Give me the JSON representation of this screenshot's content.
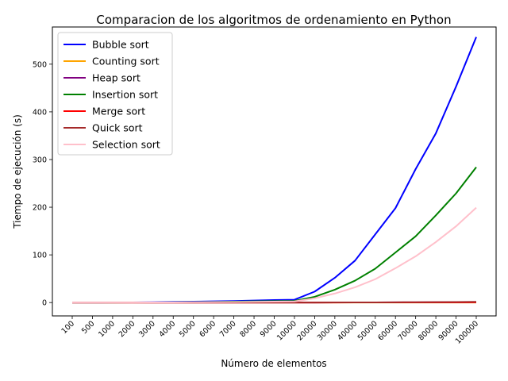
{
  "chart_data": {
    "type": "line",
    "title": "Comparacion de los algoritmos de ordenamiento en Python",
    "xlabel": "Número de elementos",
    "ylabel": "Tiempo de ejecución (s)",
    "categories": [
      "100",
      "500",
      "1000",
      "2000",
      "3000",
      "4000",
      "5000",
      "6000",
      "7000",
      "8000",
      "9000",
      "10000",
      "20000",
      "30000",
      "40000",
      "50000",
      "60000",
      "70000",
      "80000",
      "90000",
      "100000"
    ],
    "ylim": [
      -28,
      578
    ],
    "yticks": [
      0,
      100,
      200,
      300,
      400,
      500
    ],
    "legend_position": "top-left",
    "grid": false,
    "series": [
      {
        "name": "Bubble sort",
        "color": "#0000ff",
        "values": [
          0,
          0.1,
          0.2,
          0.3,
          0.7,
          1.3,
          2.0,
          2.6,
          3.3,
          4.3,
          5.3,
          6.0,
          23,
          52,
          88,
          143,
          198,
          280,
          355,
          453,
          557
        ]
      },
      {
        "name": "Counting sort",
        "color": "#ffa500",
        "values": [
          0,
          0,
          0,
          0,
          0,
          0,
          0,
          0,
          0,
          0,
          0,
          0,
          0,
          0,
          0,
          0,
          0,
          0,
          0,
          0,
          0
        ]
      },
      {
        "name": "Heap sort",
        "color": "#800080",
        "values": [
          0,
          0,
          0,
          0,
          0,
          0,
          0,
          0,
          0,
          0,
          0,
          0,
          0.1,
          0.2,
          0.3,
          0.4,
          0.5,
          0.6,
          0.7,
          0.8,
          0.9
        ]
      },
      {
        "name": "Insertion sort",
        "color": "#008000",
        "values": [
          0,
          0,
          0.1,
          0.2,
          0.4,
          0.6,
          1.0,
          1.4,
          1.9,
          2.5,
          3.0,
          3.5,
          12,
          27,
          46,
          71,
          105,
          139,
          183,
          229,
          284
        ]
      },
      {
        "name": "Merge sort",
        "color": "#ff0000",
        "values": [
          0,
          0,
          0,
          0,
          0,
          0,
          0,
          0,
          0,
          0,
          0,
          0,
          0.1,
          0.1,
          0.2,
          0.2,
          0.3,
          0.3,
          0.4,
          0.4,
          0.5
        ]
      },
      {
        "name": "Quick sort",
        "color": "#a52a2a",
        "values": [
          0,
          0,
          0,
          0,
          0,
          0,
          0,
          0,
          0,
          0,
          0,
          0,
          0.1,
          0.2,
          0.3,
          0.4,
          0.6,
          0.8,
          1.0,
          1.2,
          1.5
        ]
      },
      {
        "name": "Selection sort",
        "color": "#ffc0cb",
        "values": [
          0,
          0,
          0.1,
          0.1,
          0.3,
          0.4,
          0.7,
          0.9,
          1.2,
          1.5,
          1.9,
          2.3,
          9,
          19,
          32,
          49,
          72,
          97,
          127,
          160,
          199
        ]
      }
    ]
  }
}
